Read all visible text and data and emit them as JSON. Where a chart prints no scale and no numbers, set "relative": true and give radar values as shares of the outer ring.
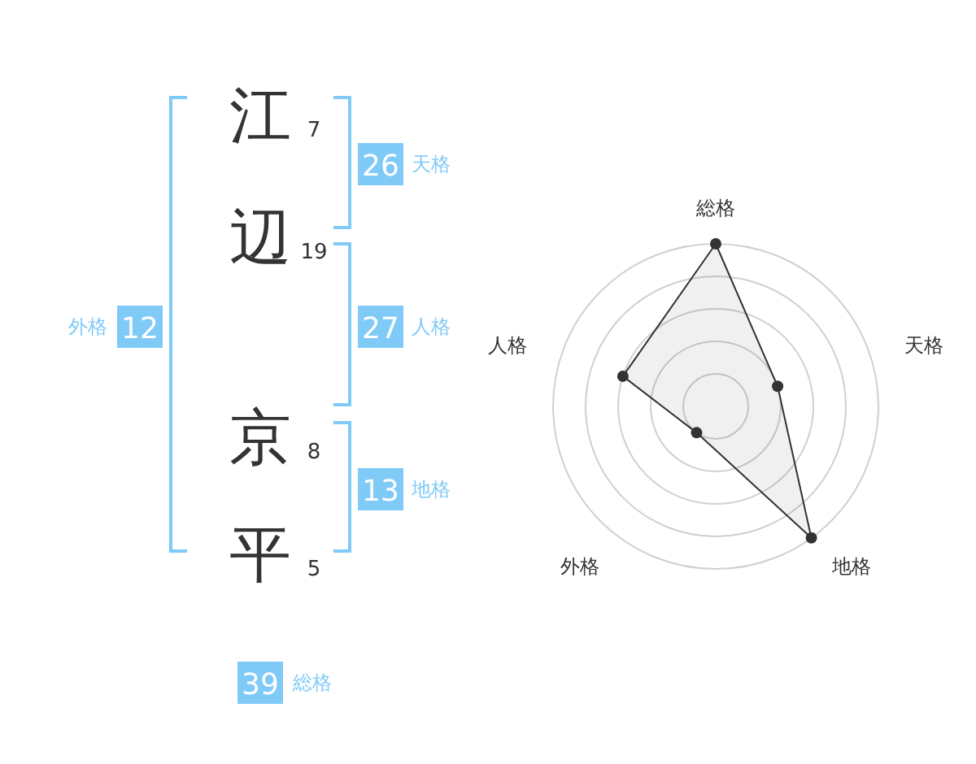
{
  "chart_data": [
    {
      "type": "other",
      "annotations": [
        "江",
        "7",
        "辺",
        "19",
        "京",
        "8",
        "平",
        "5",
        "26",
        "天格",
        "27",
        "人格",
        "13",
        "地格",
        "12",
        "外格",
        "39",
        "総格"
      ]
    },
    {
      "type": "radar",
      "categories": [
        "総格",
        "天格",
        "地格",
        "外格",
        "人格"
      ],
      "relative": true,
      "grid": true,
      "marker": "circle",
      "series": [
        {
          "color": "#333333",
          "values": [
            1,
            0.4,
            1,
            0.2,
            0.6
          ]
        }
      ]
    }
  ]
}
